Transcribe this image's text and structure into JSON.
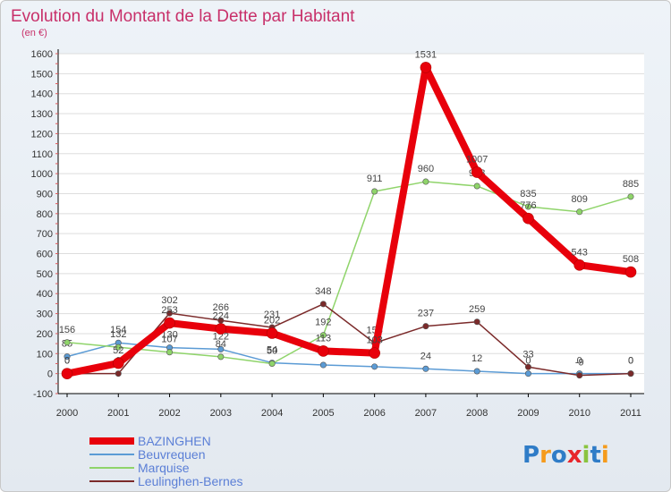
{
  "chart_data": {
    "type": "line",
    "title": "Evolution du Montant de la Dette par Habitant",
    "subtitle": "(en €)",
    "x": [
      "2000",
      "2001",
      "2002",
      "2003",
      "2004",
      "2005",
      "2006",
      "2007",
      "2008",
      "2009",
      "2010",
      "2011"
    ],
    "ylim": [
      -100,
      1600
    ],
    "yticks": [
      -100,
      0,
      100,
      200,
      300,
      400,
      500,
      600,
      700,
      800,
      900,
      1000,
      1100,
      1200,
      1300,
      1400,
      1500,
      1600
    ],
    "grid": true,
    "legend_position": "bottom-left",
    "series": [
      {
        "name": "BAZINGHEN",
        "color": "#e8000b",
        "values": [
          0,
          52,
          253,
          224,
          202,
          113,
          103,
          1531,
          1007,
          776,
          543,
          508
        ],
        "labels": [
          "0",
          "52",
          "253",
          "224",
          "202",
          "113",
          "103",
          "1531",
          "1007",
          "776",
          "543",
          "508"
        ]
      },
      {
        "name": "Beuvrequen",
        "color": "#5b9bd5",
        "values": [
          85,
          154,
          130,
          122,
          54,
          43,
          35,
          24,
          12,
          0,
          0,
          0
        ],
        "labels": [
          "85",
          "154",
          "130",
          "122",
          "54",
          "43",
          "35",
          "24",
          "12",
          "0",
          "0",
          "0"
        ]
      },
      {
        "name": "Marquise",
        "color": "#8fd46a",
        "values": [
          156,
          132,
          107,
          84,
          50,
          192,
          911,
          960,
          938,
          835,
          809,
          885
        ],
        "labels": [
          "156",
          "132",
          "107",
          "84",
          "50",
          "192",
          "911",
          "960",
          "938",
          "835",
          "809",
          "885"
        ]
      },
      {
        "name": "Leulinghen-Bernes",
        "color": "#7b2a2a",
        "values": [
          0,
          0,
          302,
          266,
          231,
          348,
          153,
          237,
          259,
          33,
          -9,
          0
        ],
        "labels": [
          "0",
          "0",
          "302",
          "266",
          "231",
          "348",
          "153",
          "237",
          "259",
          "33",
          "-9",
          "0"
        ]
      }
    ]
  },
  "logo_text": "Proxiti"
}
